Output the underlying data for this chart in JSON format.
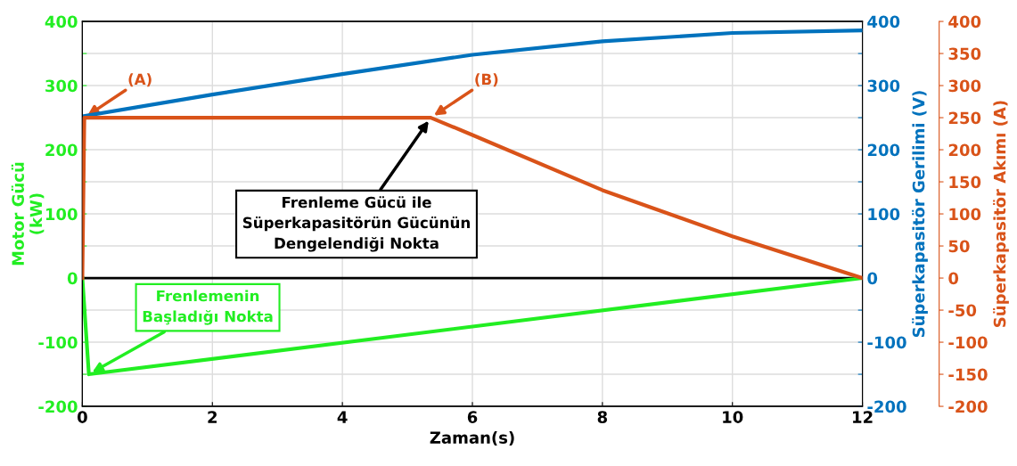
{
  "chart_data": {
    "type": "line",
    "xlabel": "Zaman(s)",
    "ylabel": "Motor Gücü\n(kW)",
    "y2label": "Süperkapasitör Gerilimi (V)",
    "y3label": "Süperkapasitör Akımı (A)",
    "xlim": [
      0,
      12
    ],
    "xticks": [
      0,
      2,
      4,
      6,
      8,
      10,
      12
    ],
    "ylim": [
      -200,
      400
    ],
    "yticks": [
      -200,
      {
        "value": -150,
        "label": null
      },
      -100,
      {
        "value": -50,
        "label": null
      },
      0,
      {
        "value": 50,
        "label": null
      },
      100,
      {
        "value": 150,
        "label": null
      },
      200,
      {
        "value": 250,
        "label": null
      },
      300,
      {
        "value": 350,
        "label": null
      },
      400
    ],
    "y2lim": [
      -200,
      400
    ],
    "y2ticks": [
      -200,
      {
        "value": -150,
        "label": null
      },
      -100,
      {
        "value": -50,
        "label": null
      },
      0,
      {
        "value": 50,
        "label": null
      },
      100,
      {
        "value": 150,
        "label": null
      },
      200,
      {
        "value": 250,
        "label": null
      },
      300,
      {
        "value": 350,
        "label": null
      },
      400
    ],
    "y3lim": [
      -200,
      400
    ],
    "y3ticks": [
      -200,
      -150,
      -100,
      -50,
      0,
      50,
      100,
      150,
      200,
      250,
      300,
      350,
      400
    ],
    "grid": true,
    "line_style": "solid",
    "marker": "none",
    "series": [
      {
        "color": "#0072bd",
        "axis": "y2",
        "x": [
          0,
          2,
          4,
          6,
          8,
          10,
          12
        ],
        "values": [
          252,
          286,
          318,
          348,
          369,
          382,
          386
        ]
      },
      {
        "color": "#d95319",
        "axis": "y3",
        "x": [
          0,
          0.03,
          5.36,
          6,
          8,
          10,
          12
        ],
        "values": [
          0,
          250,
          250,
          223,
          137,
          65,
          0
        ]
      },
      {
        "color": "#22ee22",
        "axis": "y",
        "x": [
          0,
          0.1,
          12
        ],
        "values": [
          0,
          -150,
          0
        ]
      }
    ],
    "ref_lines": [
      {
        "axis": "y",
        "value": 0,
        "color": "#000000"
      }
    ],
    "annotations": [
      {
        "text": "(A)",
        "x": 0.03,
        "y": 250
      },
      {
        "text": "(B)",
        "x": 5.36,
        "y": 250
      },
      {
        "text": "Frenleme Gücü ile\nSüperkapasitörün Gücünün\nDengelendiği Nokta",
        "x": 5.36,
        "y": 250
      },
      {
        "text": "Frenlemenin\nBaşladığı Nokta",
        "x": 0.1,
        "y": -150
      }
    ]
  }
}
